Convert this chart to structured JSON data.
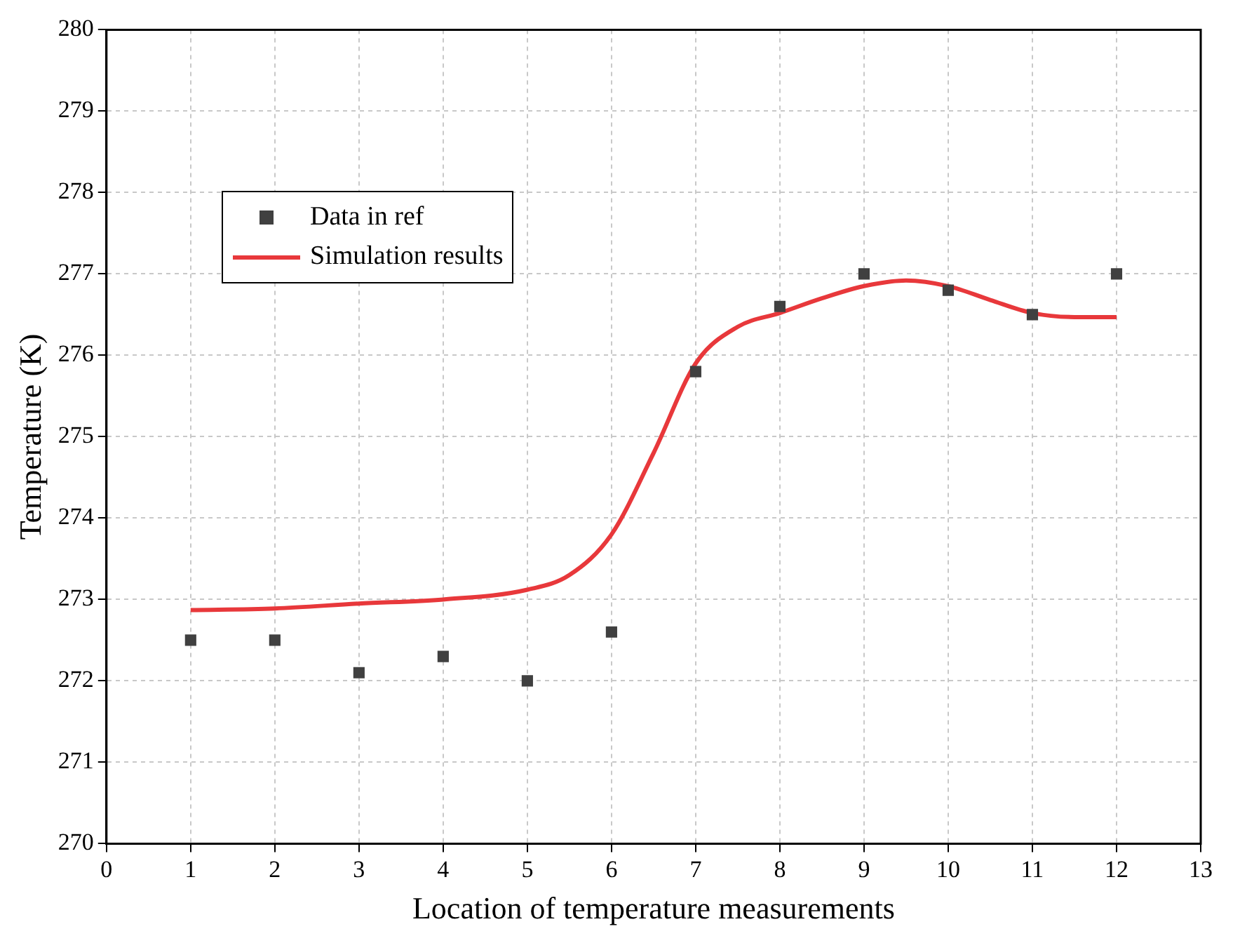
{
  "chart_data": {
    "type": "scatter",
    "xlabel": "Location of temperature measurements",
    "ylabel": "Temperature (K)",
    "xlim": [
      0,
      13
    ],
    "xticks": [
      0,
      1,
      2,
      3,
      4,
      5,
      6,
      7,
      8,
      9,
      10,
      11,
      12,
      13
    ],
    "ylim": [
      270,
      280
    ],
    "yticks": [
      270,
      271,
      272,
      273,
      274,
      275,
      276,
      277,
      278,
      279,
      280
    ],
    "grid": true,
    "legend": "top left",
    "series": [
      {
        "name": "Data in ref",
        "type": "scatter",
        "marker": "square",
        "color": "#404040",
        "x": [
          1,
          2,
          3,
          4,
          5,
          6,
          7,
          8,
          9,
          10,
          11,
          12
        ],
        "values": [
          272.5,
          272.5,
          272.1,
          272.3,
          272.0,
          272.6,
          275.8,
          276.6,
          277.0,
          276.8,
          276.5,
          277.0
        ]
      },
      {
        "name": "Simulation results",
        "type": "line",
        "marker": "none",
        "line_style": "solid",
        "color": "#e8383b",
        "x": [
          1,
          2,
          3,
          4,
          5,
          5.5,
          6,
          6.5,
          7,
          7.5,
          8,
          8.5,
          9,
          9.5,
          10,
          10.5,
          11,
          11.5,
          12
        ],
        "values": [
          272.87,
          272.89,
          272.95,
          273.0,
          273.12,
          273.3,
          273.8,
          274.8,
          275.9,
          276.35,
          276.52,
          276.7,
          276.85,
          276.92,
          276.85,
          276.68,
          276.52,
          276.47,
          276.47
        ]
      }
    ]
  }
}
